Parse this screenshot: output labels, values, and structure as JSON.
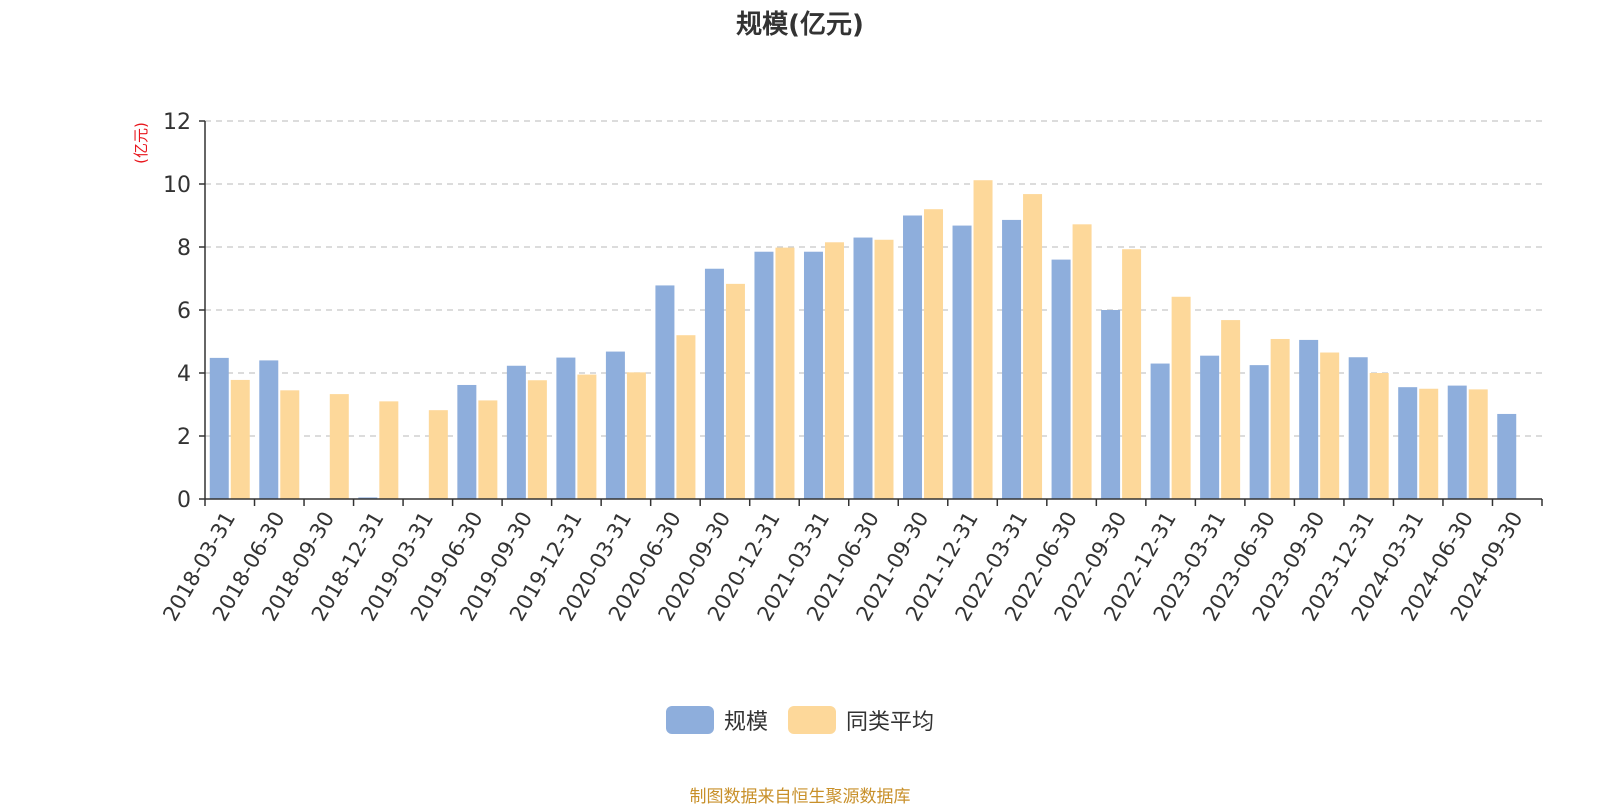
{
  "chart_data": {
    "type": "bar",
    "title": "规模(亿元)",
    "ylabel": "(亿元)",
    "ylim": [
      0,
      12
    ],
    "yticks": [
      0,
      2,
      4,
      6,
      8,
      10,
      12
    ],
    "grid": true,
    "legend_position": "bottom-center",
    "categories": [
      "2018-03-31",
      "2018-06-30",
      "2018-09-30",
      "2018-12-31",
      "2019-03-31",
      "2019-06-30",
      "2019-09-30",
      "2019-12-31",
      "2020-03-31",
      "2020-06-30",
      "2020-09-30",
      "2020-12-31",
      "2021-03-31",
      "2021-06-30",
      "2021-09-30",
      "2021-12-31",
      "2022-03-31",
      "2022-06-30",
      "2022-09-30",
      "2022-12-31",
      "2023-03-31",
      "2023-06-30",
      "2023-09-30",
      "2023-12-31",
      "2024-03-31",
      "2024-06-30",
      "2024-09-30"
    ],
    "series": [
      {
        "name": "规模",
        "color": "#8eaedc",
        "values": [
          4.48,
          4.4,
          0,
          0.05,
          0,
          3.62,
          4.23,
          4.49,
          4.68,
          6.78,
          7.31,
          7.85,
          7.85,
          8.3,
          9.0,
          8.68,
          8.86,
          7.6,
          6.0,
          4.3,
          4.55,
          4.25,
          5.05,
          4.5,
          3.55,
          3.6,
          2.7
        ]
      },
      {
        "name": "同类平均",
        "color": "#fdd89a",
        "values": [
          3.78,
          3.45,
          3.33,
          3.1,
          2.82,
          3.13,
          3.77,
          3.95,
          4.02,
          5.2,
          6.83,
          7.98,
          8.15,
          8.23,
          9.2,
          10.12,
          9.68,
          8.72,
          7.93,
          6.42,
          5.68,
          5.08,
          4.65,
          4.0,
          3.5,
          3.48,
          null
        ]
      }
    ]
  },
  "legend": {
    "items": [
      {
        "label": "规模",
        "color": "#8eaedc"
      },
      {
        "label": "同类平均",
        "color": "#fdd89a"
      }
    ]
  },
  "footer": {
    "source": "制图数据来自恒生聚源数据库"
  }
}
